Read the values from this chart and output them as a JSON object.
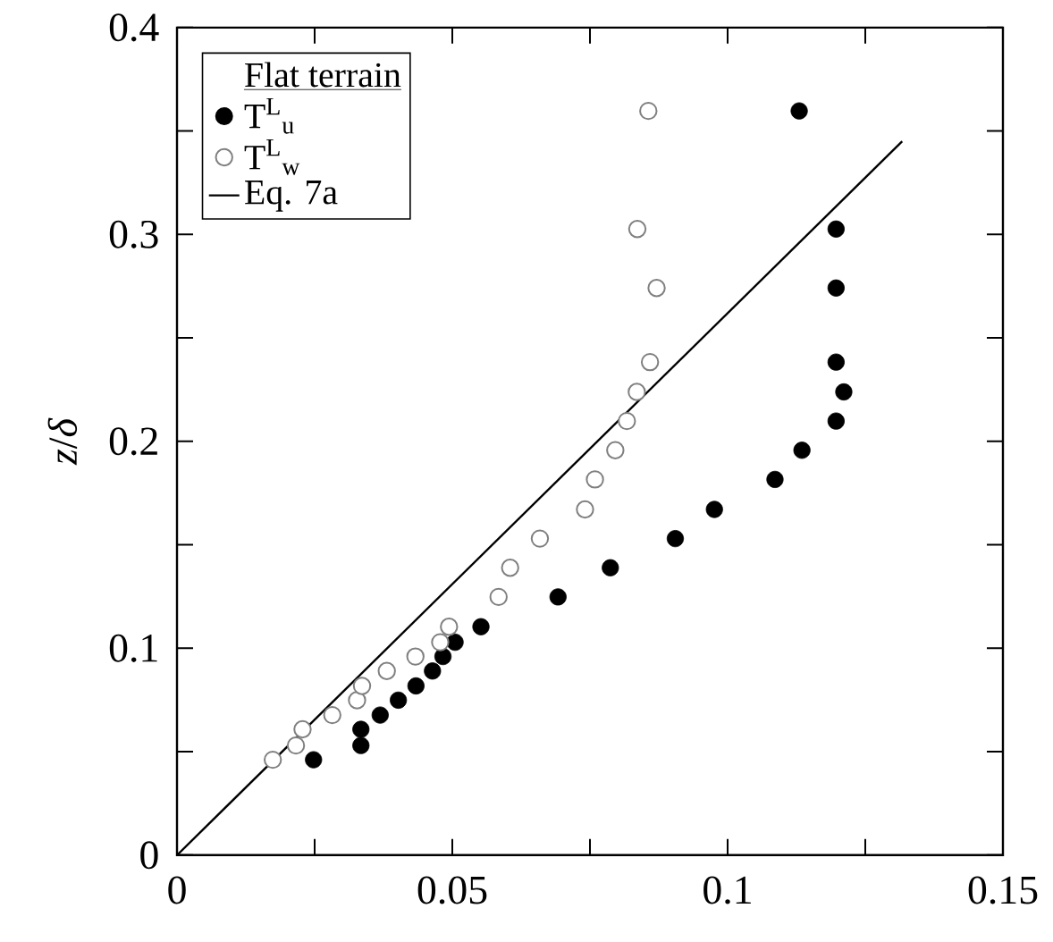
{
  "chart_data": {
    "type": "scatter",
    "ylabel": "*z*/*δ*",
    "legend_title": "Flat terrain",
    "legend": "top left",
    "grid": false,
    "xlim": [
      0,
      0.15
    ],
    "ylim": [
      0,
      0.4
    ],
    "xticks": [
      0,
      {
        "value": 0.025,
        "label": null
      },
      0.05,
      {
        "value": 0.075,
        "label": null
      },
      0.1,
      {
        "value": 0.125,
        "label": null
      },
      0.15
    ],
    "yticks": [
      0,
      {
        "value": 0.05,
        "label": null
      },
      0.1,
      {
        "value": 0.15,
        "label": null
      },
      0.2,
      {
        "value": 0.25,
        "label": null
      },
      0.3,
      {
        "value": 0.35,
        "label": null
      },
      0.4
    ],
    "series": [
      {
        "name": "T$^{L}$$_{u}$",
        "color": "#000000",
        "marker": "circle",
        "x": [
          0.0248,
          0.0334,
          0.0334,
          0.0369,
          0.0402,
          0.0434,
          0.0464,
          0.0483,
          0.0505,
          0.0552,
          0.0692,
          0.0787,
          0.0905,
          0.0976,
          0.1086,
          0.1135,
          0.1197,
          0.1211,
          0.1197,
          0.1197,
          0.1197,
          0.113
        ],
        "values": [
          0.0461,
          0.053,
          0.0608,
          0.0677,
          0.0749,
          0.0818,
          0.089,
          0.096,
          0.1029,
          0.1104,
          0.1248,
          0.1389,
          0.153,
          0.1671,
          0.1816,
          0.1957,
          0.2098,
          0.2239,
          0.2383,
          0.2741,
          0.3026,
          0.3597
        ]
      },
      {
        "name": "T$^{L}$$_{w}$",
        "color": "#808080",
        "marker": "circle open",
        "x": [
          0.0174,
          0.0216,
          0.0228,
          0.0282,
          0.0327,
          0.0336,
          0.0381,
          0.0433,
          0.0478,
          0.0494,
          0.0584,
          0.0605,
          0.0659,
          0.0741,
          0.0759,
          0.0796,
          0.0817,
          0.0835,
          0.0859,
          0.0871,
          0.0836,
          0.0856
        ],
        "values": [
          0.0461,
          0.053,
          0.0608,
          0.0677,
          0.0749,
          0.0818,
          0.089,
          0.096,
          0.1029,
          0.1104,
          0.1248,
          0.1389,
          0.153,
          0.1671,
          0.1816,
          0.1957,
          0.2098,
          0.2239,
          0.2383,
          0.2741,
          0.3026,
          0.3597
        ]
      },
      {
        "name": "Eq. 7a",
        "type": "line",
        "color": "#000000",
        "marker": "none",
        "line_style": "solid",
        "x": [
          0,
          0.1317
        ],
        "values": [
          0,
          0.345
        ]
      }
    ]
  }
}
